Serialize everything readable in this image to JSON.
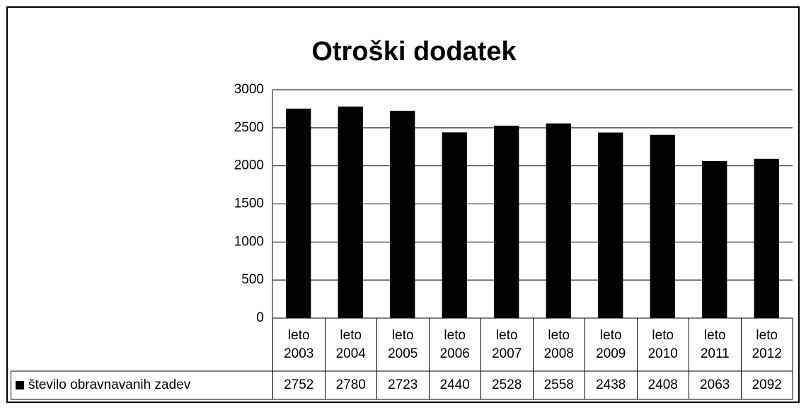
{
  "chart_data": {
    "type": "bar",
    "title": "Otroški dodatek",
    "categories": [
      "leto 2003",
      "leto 2004",
      "leto 2005",
      "leto 2006",
      "leto 2007",
      "leto 2008",
      "leto 2009",
      "leto 2010",
      "leto 2011",
      "leto 2012"
    ],
    "series": [
      {
        "name": "število obravnavanih zadev",
        "color": "#000000",
        "values": [
          2752,
          2780,
          2723,
          2440,
          2528,
          2558,
          2438,
          2408,
          2063,
          2092
        ]
      }
    ],
    "ylim": [
      0,
      3000
    ],
    "yticks": [
      0,
      500,
      1000,
      1500,
      2000,
      2500,
      3000
    ],
    "grid": true,
    "data_table": true
  }
}
